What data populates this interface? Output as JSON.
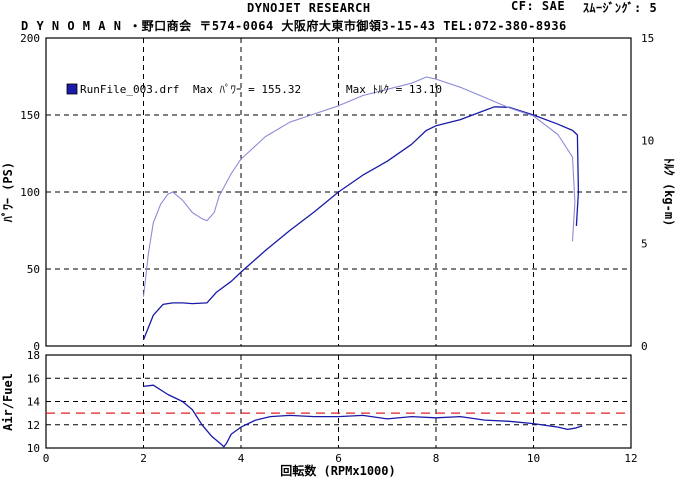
{
  "header": {
    "title": "DYNOJET  RESEARCH",
    "shop": "D Y N O M A N ・野口商会 〒574-0064 大阪府大東市御領3-15-43 TEL:072-380-8936",
    "correction": "CF: SAE",
    "smoothing": "ｽﾑｰｼﾞﾝｸﾞ: 5"
  },
  "legend": {
    "run_file": "RunFile_003.drf",
    "max_power": "Max ﾊﾟﾜｰ = 155.32",
    "max_torque": "Max ﾄﾙｸ = 13.10"
  },
  "colors": {
    "power": "#1a1aa8",
    "torque": "#8c8cd8",
    "afr": "#1a1aa8",
    "afr_target": "#e02020",
    "grid": "#000000"
  },
  "chart_data": [
    {
      "type": "line",
      "xlabel": "回転数 (RPMx1000)",
      "ylabel": "ﾊﾟﾜｰ (PS)",
      "y2label": "ﾄﾙｸ (kg-m)",
      "xlim": [
        0,
        12
      ],
      "ylim": [
        0,
        200
      ],
      "y2lim": [
        0,
        15
      ],
      "x_ticks": [
        0,
        2,
        4,
        6,
        8,
        10,
        12
      ],
      "y_ticks": [
        0,
        50,
        100,
        150,
        200
      ],
      "y2_ticks": [
        0,
        5,
        10,
        15
      ],
      "grid": true,
      "series": [
        {
          "key": "power",
          "axis": "left",
          "points": [
            [
              2.0,
              4
            ],
            [
              2.2,
              20
            ],
            [
              2.4,
              27
            ],
            [
              2.6,
              28
            ],
            [
              2.8,
              28
            ],
            [
              3.0,
              27.5
            ],
            [
              3.3,
              28
            ],
            [
              3.5,
              35
            ],
            [
              3.8,
              42
            ],
            [
              4.0,
              48
            ],
            [
              4.5,
              62
            ],
            [
              5.0,
              75
            ],
            [
              5.5,
              87
            ],
            [
              6.0,
              100
            ],
            [
              6.5,
              111
            ],
            [
              7.0,
              120
            ],
            [
              7.5,
              131
            ],
            [
              7.8,
              140
            ],
            [
              8.0,
              143
            ],
            [
              8.5,
              147
            ],
            [
              9.0,
              153
            ],
            [
              9.2,
              155.3
            ],
            [
              9.5,
              155
            ],
            [
              10.0,
              150
            ],
            [
              10.5,
              144
            ],
            [
              10.8,
              140
            ],
            [
              10.9,
              137
            ],
            [
              10.92,
              100
            ],
            [
              10.88,
              78
            ]
          ]
        },
        {
          "key": "torque",
          "axis": "right",
          "points": [
            [
              2.0,
              2.4
            ],
            [
              2.1,
              4.5
            ],
            [
              2.2,
              6.0
            ],
            [
              2.35,
              6.9
            ],
            [
              2.5,
              7.4
            ],
            [
              2.6,
              7.5
            ],
            [
              2.8,
              7.1
            ],
            [
              3.0,
              6.5
            ],
            [
              3.2,
              6.2
            ],
            [
              3.3,
              6.1
            ],
            [
              3.45,
              6.5
            ],
            [
              3.55,
              7.3
            ],
            [
              3.8,
              8.4
            ],
            [
              4.0,
              9.1
            ],
            [
              4.5,
              10.2
            ],
            [
              5.0,
              10.9
            ],
            [
              5.5,
              11.3
            ],
            [
              6.0,
              11.7
            ],
            [
              6.5,
              12.2
            ],
            [
              7.0,
              12.5
            ],
            [
              7.5,
              12.8
            ],
            [
              7.8,
              13.1
            ],
            [
              8.0,
              13.0
            ],
            [
              8.5,
              12.6
            ],
            [
              9.0,
              12.1
            ],
            [
              9.5,
              11.6
            ],
            [
              10.0,
              11.2
            ],
            [
              10.5,
              10.3
            ],
            [
              10.8,
              9.2
            ],
            [
              10.85,
              7.0
            ],
            [
              10.8,
              5.1
            ]
          ]
        }
      ]
    },
    {
      "type": "line",
      "ylabel": "Air/Fuel",
      "xlim": [
        0,
        12
      ],
      "ylim": [
        10,
        18
      ],
      "y_ticks": [
        10,
        12,
        14,
        16,
        18
      ],
      "grid": true,
      "target_afr": 13.0,
      "series": [
        {
          "key": "afr",
          "points": [
            [
              2.0,
              15.3
            ],
            [
              2.2,
              15.4
            ],
            [
              2.5,
              14.6
            ],
            [
              2.8,
              14.0
            ],
            [
              3.0,
              13.3
            ],
            [
              3.2,
              12.0
            ],
            [
              3.4,
              11.0
            ],
            [
              3.6,
              10.3
            ],
            [
              3.65,
              10.1
            ],
            [
              3.7,
              10.4
            ],
            [
              3.8,
              11.2
            ],
            [
              4.0,
              11.8
            ],
            [
              4.3,
              12.4
            ],
            [
              4.6,
              12.7
            ],
            [
              5.0,
              12.8
            ],
            [
              5.5,
              12.7
            ],
            [
              6.0,
              12.7
            ],
            [
              6.5,
              12.8
            ],
            [
              7.0,
              12.5
            ],
            [
              7.5,
              12.7
            ],
            [
              8.0,
              12.6
            ],
            [
              8.5,
              12.7
            ],
            [
              9.0,
              12.4
            ],
            [
              9.5,
              12.3
            ],
            [
              10.0,
              12.1
            ],
            [
              10.5,
              11.8
            ],
            [
              10.7,
              11.6
            ],
            [
              10.85,
              11.7
            ],
            [
              11.0,
              11.9
            ]
          ]
        }
      ]
    }
  ]
}
